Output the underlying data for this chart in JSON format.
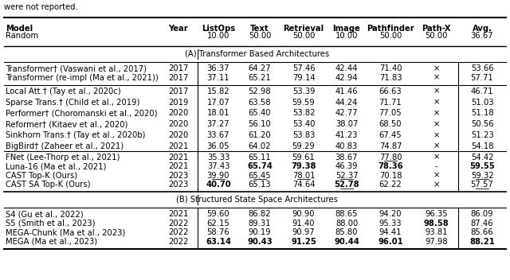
{
  "title_text": "were not reported.",
  "section_A": "(A) Transformer Based Architectures",
  "section_B": "(B) Structured State Space Architectures",
  "group1": [
    [
      "Transformer† (Vaswani et al., 2017)",
      "2017",
      "36.37",
      "64.27",
      "57.46",
      "42.44",
      "71.40",
      "×",
      "53.66"
    ],
    [
      "Transformer (re-impl (Ma et al., 2021))",
      "2017",
      "37.11",
      "65.21",
      "79.14",
      "42.94",
      "71.83",
      "×",
      "57.71"
    ]
  ],
  "group2": [
    [
      "Local Att.† (Tay et al., 2020c)",
      "2017",
      "15.82",
      "52.98",
      "53.39",
      "41.46",
      "66.63",
      "×",
      "46.71"
    ],
    [
      "Sparse Trans.† (Child et al., 2019)",
      "2019",
      "17.07",
      "63.58",
      "59.59",
      "44.24",
      "71.71",
      "×",
      "51.03"
    ],
    [
      "Performer† (Choromanski et al., 2020)",
      "2020",
      "18.01",
      "65.40",
      "53.82",
      "42.77",
      "77.05",
      "×",
      "51.18"
    ],
    [
      "Reformer† (Kitaev et al., 2020)",
      "2020",
      "37.27",
      "56.10",
      "53.40",
      "38.07",
      "68.50",
      "×",
      "50.56"
    ],
    [
      "Sinkhorn Trans.† (Tay et al., 2020b)",
      "2020",
      "33.67",
      "61.20",
      "53.83",
      "41.23",
      "67.45",
      "×",
      "51.23"
    ],
    [
      "BigBird† (Zaheer et al., 2021)",
      "2021",
      "36.05",
      "64.02",
      "59.29",
      "40.83",
      "74.87",
      "×",
      "54.18"
    ]
  ],
  "group3": [
    [
      "FNet (Lee-Thorp et al., 2021)",
      "2021",
      "35.33",
      "65.11",
      "59.61",
      "38.67",
      "77.80",
      "×",
      "54.42"
    ],
    [
      "Luna-16 (Ma et al., 2021)",
      "2021",
      "37.43",
      "65.74",
      "79.38",
      "46.39",
      "78.36",
      "-",
      "59.55"
    ],
    [
      "CAST Top-K (Ours)",
      "2023",
      "39.90",
      "65.45",
      "78.01",
      "52.37",
      "70.18",
      "×",
      "59.32"
    ],
    [
      "CAST SA Top-K (Ours)",
      "2023",
      "40.70",
      "65.13",
      "74.64",
      "52.78",
      "62.22",
      "×",
      "57.57"
    ]
  ],
  "group4": [
    [
      "S4 (Gu et al., 2022)",
      "2021",
      "59.60",
      "86.82",
      "90.90",
      "88.65",
      "94.20",
      "96.35",
      "86.09"
    ],
    [
      "S5 (Smith et al., 2023)",
      "2022",
      "62.15",
      "89.31",
      "91.40",
      "88.00",
      "95.33",
      "98.58",
      "87.46"
    ],
    [
      "MEGA-Chunk (Ma et al., 2023)",
      "2022",
      "58.76",
      "90.19",
      "90.97",
      "85.80",
      "94.41",
      "93.81",
      "85.66"
    ],
    [
      "MEGA (Ma et al., 2023)",
      "2022",
      "63.14",
      "90.43",
      "91.25",
      "90.44",
      "96.01",
      "97.98",
      "88.21"
    ]
  ],
  "bg_color": "#ffffff",
  "text_color": "#000000",
  "font_size": 7.2
}
